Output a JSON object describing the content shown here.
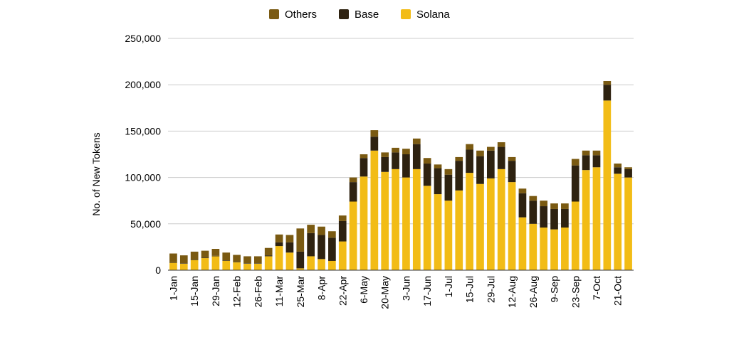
{
  "chart_data": {
    "type": "bar",
    "stacked": true,
    "title": "",
    "xlabel": "",
    "ylabel": "No. of New Tokens",
    "ylim": [
      0,
      250000
    ],
    "yticks": [
      0,
      50000,
      100000,
      150000,
      200000,
      250000
    ],
    "ytick_labels": [
      "0",
      "50,000",
      "100,000",
      "150,000",
      "200,000",
      "250,000"
    ],
    "grid": true,
    "legend_position": "top-center",
    "legend": [
      {
        "name": "Others",
        "color": "#7a5a12"
      },
      {
        "name": "Base",
        "color": "#2e2210"
      },
      {
        "name": "Solana",
        "color": "#f2bc16"
      }
    ],
    "x_tick_labels": [
      "1-Jan",
      "15-Jan",
      "29-Jan",
      "12-Feb",
      "26-Feb",
      "11-Mar",
      "25-Mar",
      "8-Apr",
      "22-Apr",
      "6-May",
      "20-May",
      "3-Jun",
      "17-Jun",
      "1-Jul",
      "15-Jul",
      "29-Jul",
      "12-Aug",
      "26-Aug",
      "9-Sep",
      "23-Sep",
      "7-Oct",
      "21-Oct"
    ],
    "categories_count": 44,
    "series": [
      {
        "name": "Solana",
        "color": "#f2bc16",
        "values": [
          8000,
          7000,
          11000,
          13000,
          15000,
          10000,
          8500,
          7000,
          7000,
          15000,
          26000,
          19000,
          2000,
          15000,
          12000,
          10000,
          31000,
          74000,
          101000,
          129000,
          106000,
          109000,
          100000,
          109000,
          91000,
          82000,
          75000,
          86000,
          105000,
          93000,
          99000,
          109000,
          95000,
          57000,
          50000,
          46000,
          44000,
          46000,
          74000,
          108000,
          111000,
          183000,
          104000,
          100000
        ]
      },
      {
        "name": "Base",
        "color": "#2e2210",
        "values": [
          500,
          500,
          500,
          500,
          500,
          500,
          500,
          500,
          500,
          1000,
          4000,
          11000,
          18000,
          25000,
          26000,
          25000,
          22000,
          21000,
          20000,
          15000,
          16000,
          18000,
          25000,
          27000,
          24000,
          28000,
          28000,
          32000,
          25000,
          30000,
          30000,
          24000,
          23000,
          26000,
          25000,
          23000,
          22000,
          20000,
          39000,
          16000,
          13000,
          17000,
          7000,
          9000
        ]
      },
      {
        "name": "Others",
        "color": "#7a5a12",
        "values": [
          9500,
          8500,
          8500,
          7500,
          7500,
          8500,
          7500,
          7500,
          7500,
          8000,
          8500,
          8000,
          25000,
          9000,
          9000,
          7000,
          6000,
          5000,
          4000,
          7000,
          5000,
          5000,
          6000,
          6000,
          6000,
          4000,
          6000,
          4000,
          6000,
          6000,
          4000,
          5000,
          4000,
          5000,
          5000,
          6000,
          6000,
          6000,
          7000,
          5000,
          5000,
          4000,
          4000,
          2000
        ]
      }
    ]
  }
}
